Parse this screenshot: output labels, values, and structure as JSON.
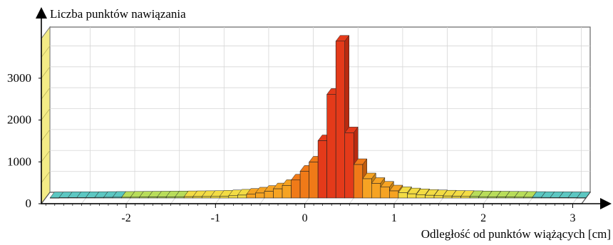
{
  "chart_data": {
    "type": "bar",
    "title": "",
    "ylabel": "Liczba punktów nawiązania",
    "xlabel": "Odległość od punktów wiążących [cm]",
    "x_ticks": [
      -2,
      -1,
      0,
      1,
      2,
      3
    ],
    "y_ticks": [
      0,
      1000,
      2000,
      3000
    ],
    "xlim": [
      -2.95,
      3.1
    ],
    "ylim": [
      0,
      3950
    ],
    "grid": true,
    "bin_width": 0.1,
    "x": [
      -2.9,
      -2.8,
      -2.7,
      -2.6,
      -2.5,
      -2.4,
      -2.3,
      -2.2,
      -2.1,
      -2.0,
      -1.9,
      -1.8,
      -1.7,
      -1.6,
      -1.5,
      -1.4,
      -1.3,
      -1.2,
      -1.1,
      -1.0,
      -0.9,
      -0.8,
      -0.7,
      -0.6,
      -0.5,
      -0.4,
      -0.3,
      -0.2,
      -0.1,
      0.0,
      0.1,
      0.2,
      0.3,
      0.4,
      0.5,
      0.6,
      0.7,
      0.8,
      0.9,
      1.0,
      1.1,
      1.2,
      1.3,
      1.4,
      1.5,
      1.6,
      1.7,
      1.8,
      1.9,
      2.0,
      2.1,
      2.2,
      2.3,
      2.4,
      2.5,
      2.6,
      2.7,
      2.8,
      2.9,
      3.0
    ],
    "values": [
      5,
      8,
      10,
      12,
      12,
      14,
      16,
      18,
      18,
      20,
      22,
      24,
      26,
      28,
      30,
      32,
      34,
      36,
      38,
      45,
      55,
      70,
      90,
      120,
      160,
      220,
      300,
      430,
      640,
      860,
      1370,
      2480,
      3750,
      1560,
      800,
      460,
      350,
      260,
      170,
      130,
      100,
      80,
      65,
      55,
      48,
      42,
      38,
      35,
      30,
      28,
      25,
      22,
      20,
      18,
      15,
      13,
      12,
      10,
      8,
      6
    ]
  }
}
